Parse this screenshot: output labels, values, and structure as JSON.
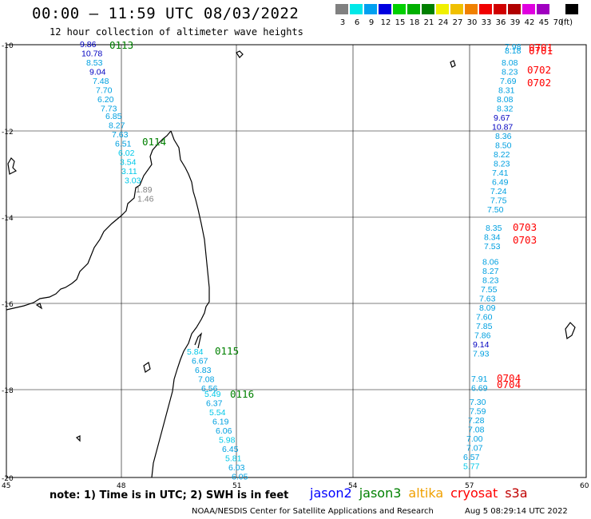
{
  "header": {
    "title": "00:00 — 11:59 UTC 08/03/2022",
    "subtitle": "12 hour collection of altimeter wave heights"
  },
  "legend": {
    "unit": "(ft)",
    "items": [
      {
        "label": "3",
        "color": "#808080"
      },
      {
        "label": "6",
        "color": "#00e8e8"
      },
      {
        "label": "9",
        "color": "#00a0f0"
      },
      {
        "label": "12",
        "color": "#0000e0"
      },
      {
        "label": "15",
        "color": "#00d000"
      },
      {
        "label": "18",
        "color": "#00b000"
      },
      {
        "label": "21",
        "color": "#008000"
      },
      {
        "label": "24",
        "color": "#f0f000"
      },
      {
        "label": "27",
        "color": "#f0c000"
      },
      {
        "label": "30",
        "color": "#f08000"
      },
      {
        "label": "33",
        "color": "#f00000"
      },
      {
        "label": "36",
        "color": "#d00000"
      },
      {
        "label": "39",
        "color": "#b00000"
      },
      {
        "label": "42",
        "color": "#e000e0"
      },
      {
        "label": "45",
        "color": "#a000c0"
      },
      {
        "label": "70",
        "color": "#ffffff"
      },
      {
        "label": "",
        "color": "#000000"
      }
    ]
  },
  "axes": {
    "lat_labels": [
      "-10",
      "-12",
      "-14",
      "-16",
      "-18",
      "-20"
    ],
    "lon_labels": [
      "45",
      "48",
      "51",
      "54",
      "57",
      "60"
    ]
  },
  "tracks": [
    {
      "time": "0113",
      "time_color": "#008000",
      "points": [
        {
          "v": "9.86",
          "c": "#0000c0"
        },
        {
          "v": "10.78",
          "c": "#0000c0"
        },
        {
          "v": "8.53",
          "c": "#00a0e0"
        },
        {
          "v": "9.04",
          "c": "#0000c0"
        },
        {
          "v": "7.48",
          "c": "#00a0e0"
        },
        {
          "v": "7.70",
          "c": "#00a0e0"
        },
        {
          "v": "6.20",
          "c": "#00a0e0"
        },
        {
          "v": "7.73",
          "c": "#00a0e0"
        }
      ]
    },
    {
      "time": "0114",
      "time_color": "#008000",
      "points": [
        {
          "v": "6.85",
          "c": "#00a0e0"
        },
        {
          "v": "8.27",
          "c": "#00a0e0"
        },
        {
          "v": "7.63",
          "c": "#00a0e0"
        },
        {
          "v": "6.51",
          "c": "#00a0e0"
        },
        {
          "v": "6.02",
          "c": "#00c8e8"
        },
        {
          "v": "3.54",
          "c": "#00c8e8"
        },
        {
          "v": "3.11",
          "c": "#00c8e8"
        },
        {
          "v": "3.03",
          "c": "#00c8e8"
        },
        {
          "v": "1.89",
          "c": "#808080"
        },
        {
          "v": "1.46",
          "c": "#808080"
        }
      ]
    },
    {
      "time": "0115",
      "time_color": "#008000",
      "points": [
        {
          "v": "5.84",
          "c": "#00c8e8"
        },
        {
          "v": "6.67",
          "c": "#00a0e0"
        },
        {
          "v": "6.83",
          "c": "#00a0e0"
        },
        {
          "v": "7.08",
          "c": "#00a0e0"
        },
        {
          "v": "6.56",
          "c": "#00a0e0"
        }
      ]
    },
    {
      "time": "0116",
      "time_color": "#008000",
      "points": [
        {
          "v": "5.49",
          "c": "#00c8e8"
        },
        {
          "v": "6.37",
          "c": "#00a0e0"
        },
        {
          "v": "5.54",
          "c": "#00c8e8"
        },
        {
          "v": "6.19",
          "c": "#00a0e0"
        },
        {
          "v": "6.06",
          "c": "#00a0e0"
        },
        {
          "v": "5.98",
          "c": "#00c8e8"
        },
        {
          "v": "6.45",
          "c": "#00a0e0"
        },
        {
          "v": "5.81",
          "c": "#00c8e8"
        },
        {
          "v": "6.03",
          "c": "#00a0e0"
        },
        {
          "v": "6.05",
          "c": "#00a0e0"
        }
      ]
    },
    {
      "time": "0701",
      "time_color": "#ff0000",
      "points": [
        {
          "v": "7.98",
          "c": "#00a0e0"
        },
        {
          "v": "8.18",
          "c": "#00a0e0"
        }
      ]
    },
    {
      "time": "0702",
      "time_color": "#ff0000",
      "points": [
        {
          "v": "8.08",
          "c": "#00a0e0"
        },
        {
          "v": "8.23",
          "c": "#00a0e0"
        },
        {
          "v": "7.69",
          "c": "#00a0e0"
        },
        {
          "v": "8.31",
          "c": "#00a0e0"
        },
        {
          "v": "8.08",
          "c": "#00a0e0"
        },
        {
          "v": "8.32",
          "c": "#00a0e0"
        },
        {
          "v": "9.67",
          "c": "#0000c0"
        },
        {
          "v": "10.87",
          "c": "#0000c0"
        },
        {
          "v": "8.36",
          "c": "#00a0e0"
        },
        {
          "v": "8.50",
          "c": "#00a0e0"
        },
        {
          "v": "8.22",
          "c": "#00a0e0"
        },
        {
          "v": "8.23",
          "c": "#00a0e0"
        },
        {
          "v": "7.41",
          "c": "#00a0e0"
        },
        {
          "v": "6.49",
          "c": "#00a0e0"
        },
        {
          "v": "7.24",
          "c": "#00a0e0"
        },
        {
          "v": "7.75",
          "c": "#00a0e0"
        },
        {
          "v": "7.50",
          "c": "#00a0e0"
        }
      ]
    },
    {
      "time": "0703",
      "time_color": "#ff0000",
      "points": [
        {
          "v": "8.35",
          "c": "#00a0e0"
        },
        {
          "v": "8.34",
          "c": "#00a0e0"
        },
        {
          "v": "7.53",
          "c": "#00a0e0"
        },
        {
          "v": "8.06",
          "c": "#00a0e0"
        },
        {
          "v": "8.27",
          "c": "#00a0e0"
        },
        {
          "v": "8.23",
          "c": "#00a0e0"
        },
        {
          "v": "7.55",
          "c": "#00a0e0"
        },
        {
          "v": "7.63",
          "c": "#00a0e0"
        },
        {
          "v": "8.09",
          "c": "#00a0e0"
        },
        {
          "v": "7.60",
          "c": "#00a0e0"
        },
        {
          "v": "7.85",
          "c": "#00a0e0"
        },
        {
          "v": "7.86",
          "c": "#00a0e0"
        },
        {
          "v": "9.14",
          "c": "#0000c0"
        },
        {
          "v": "7.93",
          "c": "#00a0e0"
        }
      ]
    },
    {
      "time": "0704",
      "time_color": "#ff0000",
      "points": [
        {
          "v": "7.91",
          "c": "#00a0e0"
        },
        {
          "v": "6.69",
          "c": "#00a0e0"
        },
        {
          "v": "7.30",
          "c": "#00a0e0"
        },
        {
          "v": "7.59",
          "c": "#00a0e0"
        },
        {
          "v": "7.28",
          "c": "#00a0e0"
        },
        {
          "v": "7.08",
          "c": "#00a0e0"
        },
        {
          "v": "7.00",
          "c": "#00a0e0"
        },
        {
          "v": "7.07",
          "c": "#00a0e0"
        },
        {
          "v": "6.57",
          "c": "#00a0e0"
        },
        {
          "v": "5.77",
          "c": "#00c8e8"
        }
      ]
    }
  ],
  "footer": {
    "note": "note: 1) Time is in UTC; 2) SWH is in feet",
    "satellites": [
      {
        "name": "jason2",
        "color": "#0000ff"
      },
      {
        "name": "jason3",
        "color": "#008000"
      },
      {
        "name": "altika",
        "color": "#f0a000"
      },
      {
        "name": "cryosat",
        "color": "#ff0000"
      },
      {
        "name": "s3a",
        "color": "#c00000"
      }
    ],
    "credit": "NOAA/NESDIS Center for Satellite Applications and Research",
    "timestamp": "Aug  5 08:29:14 UTC 2022"
  }
}
